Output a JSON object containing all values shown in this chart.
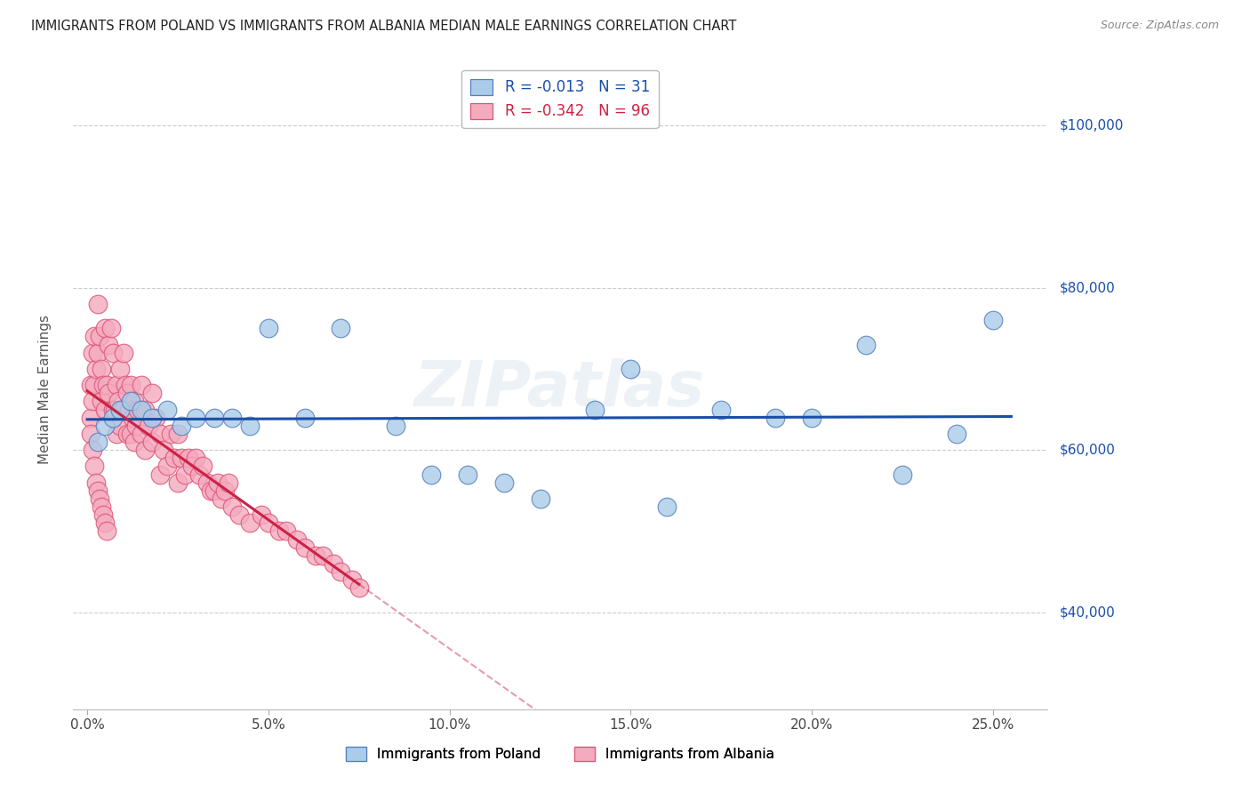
{
  "title": "IMMIGRANTS FROM POLAND VS IMMIGRANTS FROM ALBANIA MEDIAN MALE EARNINGS CORRELATION CHART",
  "source": "Source: ZipAtlas.com",
  "ylabel": "Median Male Earnings",
  "xlabel_ticks": [
    "0.0%",
    "5.0%",
    "10.0%",
    "15.0%",
    "20.0%",
    "25.0%"
  ],
  "xlabel_vals": [
    0.0,
    5.0,
    10.0,
    15.0,
    20.0,
    25.0
  ],
  "ylabel_ticks": [
    "$40,000",
    "$60,000",
    "$80,000",
    "$100,000"
  ],
  "ylabel_vals": [
    40000,
    60000,
    80000,
    100000
  ],
  "xlim": [
    -0.4,
    26.5
  ],
  "ylim": [
    28000,
    107000
  ],
  "poland_color": "#aacce8",
  "albania_color": "#f4aabf",
  "poland_edge": "#5580bb",
  "albania_edge": "#dd5577",
  "poland_line_color": "#1a4eaa",
  "albania_line_color": "#cc2244",
  "R_poland": -0.013,
  "N_poland": 31,
  "R_albania": -0.342,
  "N_albania": 96,
  "legend_label_poland": "Immigrants from Poland",
  "legend_label_albania": "Immigrants from Albania",
  "watermark": "ZIPatlas",
  "right_axis_color": "#1a4eaa",
  "poland_x": [
    0.3,
    0.5,
    0.7,
    0.9,
    1.2,
    1.5,
    1.8,
    2.2,
    2.6,
    3.0,
    3.5,
    4.0,
    4.5,
    5.0,
    6.0,
    7.0,
    8.5,
    9.5,
    10.5,
    11.5,
    12.5,
    14.0,
    15.0,
    16.0,
    17.5,
    19.0,
    20.0,
    21.5,
    22.5,
    24.0,
    25.0
  ],
  "poland_y": [
    61000,
    63000,
    64000,
    65000,
    66000,
    65000,
    64000,
    65000,
    63000,
    64000,
    64000,
    64000,
    63000,
    75000,
    64000,
    75000,
    63000,
    57000,
    57000,
    56000,
    54000,
    65000,
    70000,
    53000,
    65000,
    64000,
    64000,
    73000,
    57000,
    62000,
    76000
  ],
  "albania_x": [
    0.1,
    0.1,
    0.15,
    0.15,
    0.2,
    0.2,
    0.25,
    0.3,
    0.3,
    0.35,
    0.4,
    0.4,
    0.45,
    0.5,
    0.5,
    0.55,
    0.6,
    0.6,
    0.65,
    0.7,
    0.7,
    0.75,
    0.8,
    0.8,
    0.85,
    0.9,
    0.9,
    0.95,
    1.0,
    1.0,
    1.05,
    1.1,
    1.1,
    1.15,
    1.2,
    1.2,
    1.25,
    1.3,
    1.3,
    1.35,
    1.4,
    1.5,
    1.5,
    1.6,
    1.6,
    1.7,
    1.8,
    1.8,
    1.9,
    2.0,
    2.0,
    2.1,
    2.2,
    2.3,
    2.4,
    2.5,
    2.5,
    2.6,
    2.7,
    2.8,
    2.9,
    3.0,
    3.1,
    3.2,
    3.3,
    3.4,
    3.5,
    3.6,
    3.7,
    3.8,
    3.9,
    4.0,
    4.2,
    4.5,
    4.8,
    5.0,
    5.3,
    5.5,
    5.8,
    6.0,
    6.3,
    6.5,
    6.8,
    7.0,
    7.3,
    7.5,
    0.1,
    0.15,
    0.2,
    0.25,
    0.3,
    0.35,
    0.4,
    0.45,
    0.5,
    0.55
  ],
  "albania_y": [
    68000,
    64000,
    72000,
    66000,
    74000,
    68000,
    70000,
    78000,
    72000,
    74000,
    70000,
    66000,
    68000,
    75000,
    65000,
    68000,
    73000,
    67000,
    75000,
    72000,
    65000,
    65000,
    68000,
    62000,
    66000,
    70000,
    63000,
    65000,
    72000,
    65000,
    68000,
    67000,
    62000,
    65000,
    68000,
    62000,
    64000,
    66000,
    61000,
    63000,
    65000,
    68000,
    62000,
    65000,
    60000,
    63000,
    67000,
    61000,
    64000,
    62000,
    57000,
    60000,
    58000,
    62000,
    59000,
    62000,
    56000,
    59000,
    57000,
    59000,
    58000,
    59000,
    57000,
    58000,
    56000,
    55000,
    55000,
    56000,
    54000,
    55000,
    56000,
    53000,
    52000,
    51000,
    52000,
    51000,
    50000,
    50000,
    49000,
    48000,
    47000,
    47000,
    46000,
    45000,
    44000,
    43000,
    62000,
    60000,
    58000,
    56000,
    55000,
    54000,
    53000,
    52000,
    51000,
    50000
  ],
  "albania_solid_xmax": 7.5,
  "albania_dashed_xmax": 25.5
}
